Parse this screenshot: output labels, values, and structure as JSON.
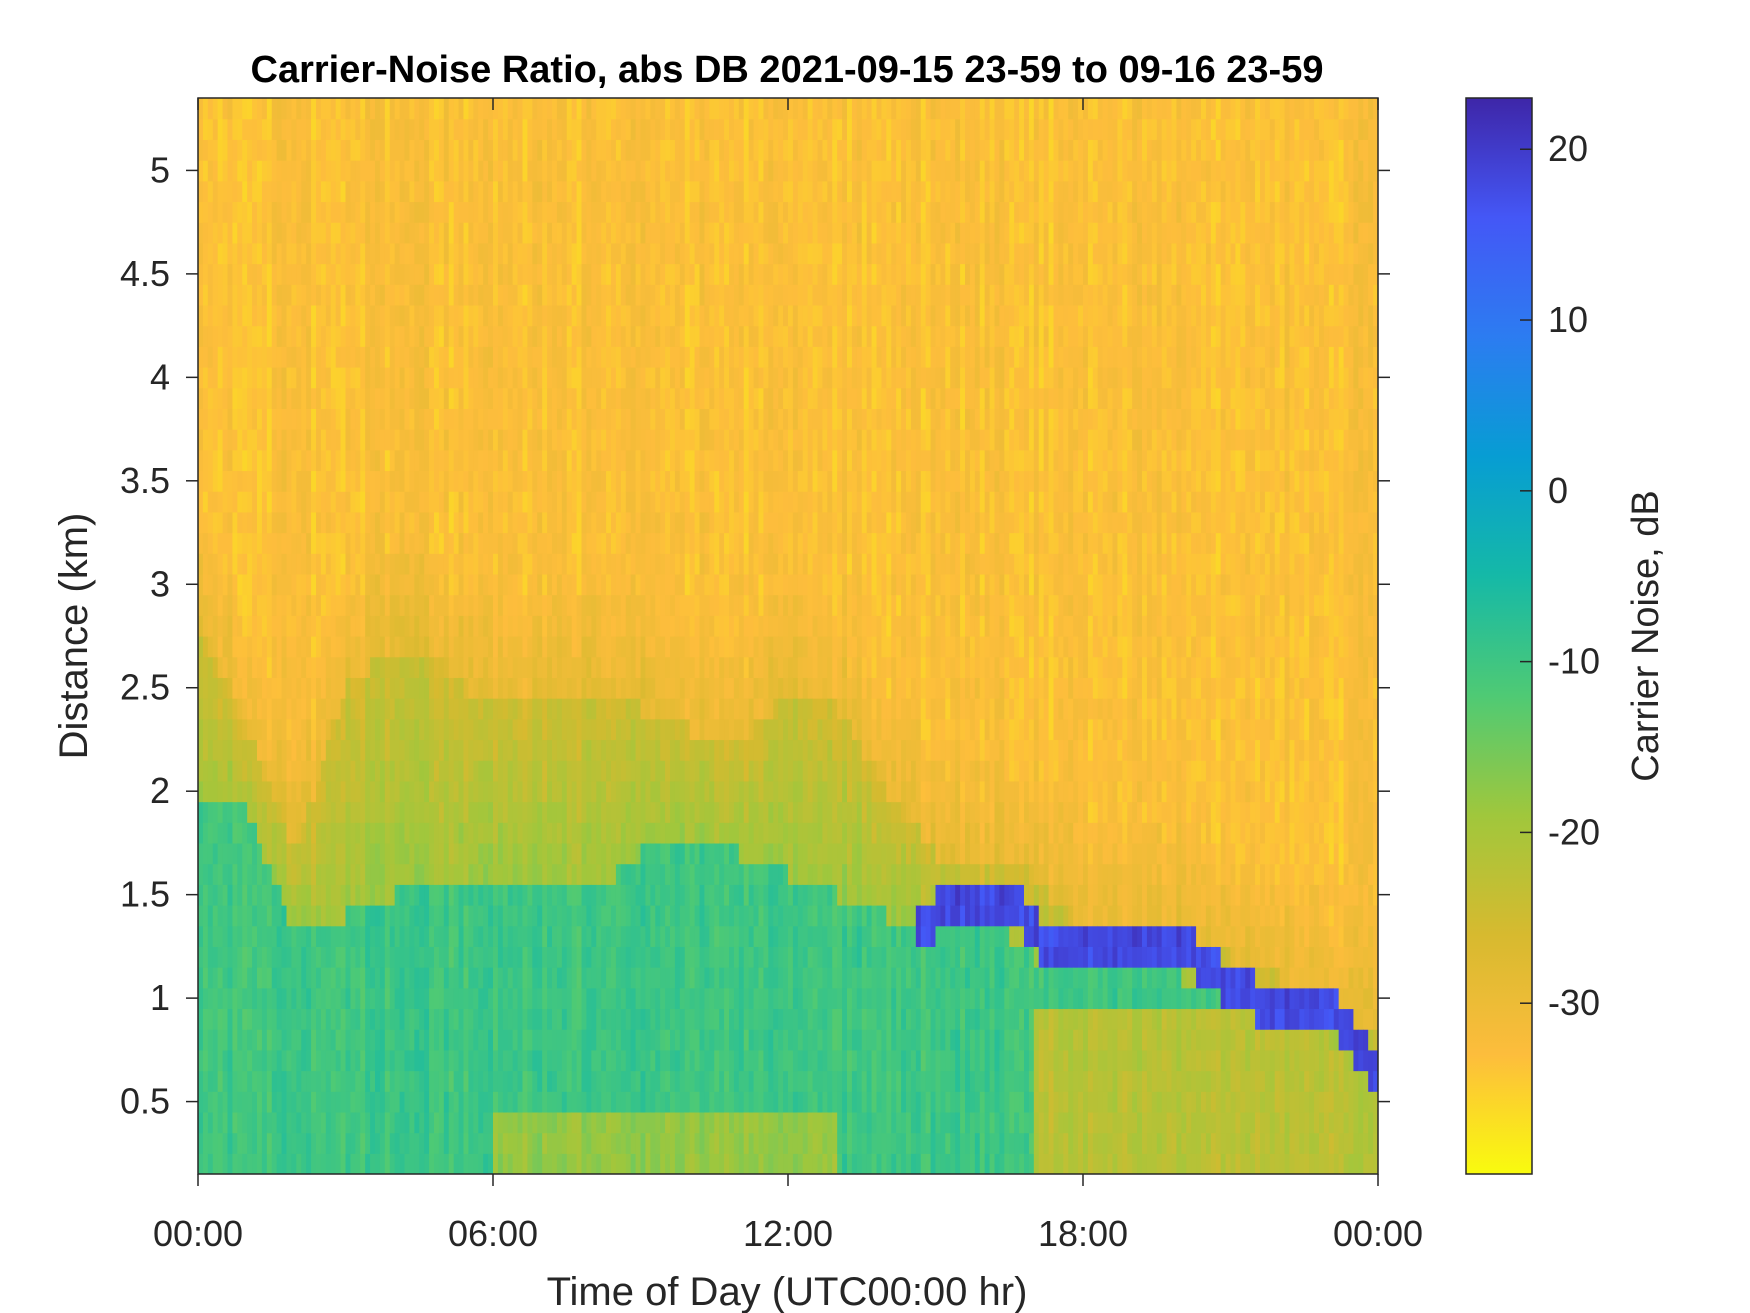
{
  "chart_data": {
    "type": "heatmap",
    "title": "Carrier-Noise Ratio, abs DB 2021-09-15 23-59 to 09-16 23-59",
    "xlabel": "Time of Day (UTC00:00 hr)",
    "ylabel": "Distance (km)",
    "colorbar_label": "Carrier Noise, dB",
    "xlim": [
      0,
      24
    ],
    "ylim": [
      0.15,
      5.35
    ],
    "clim": [
      -40,
      23
    ],
    "x_ticks": [
      0,
      6,
      12,
      18,
      24
    ],
    "x_tick_labels": [
      "00:00",
      "06:00",
      "12:00",
      "18:00",
      "00:00"
    ],
    "y_ticks": [
      0.5,
      1,
      1.5,
      2,
      2.5,
      3,
      3.5,
      4,
      4.5,
      5
    ],
    "y_tick_labels": [
      "0.5",
      "1",
      "1.5",
      "2",
      "2.5",
      "3",
      "3.5",
      "4",
      "4.5",
      "5"
    ],
    "colorbar_ticks": [
      -30,
      -20,
      -10,
      0,
      10,
      20
    ],
    "colorbar_tick_labels": [
      "-30",
      "-20",
      "-10",
      "0",
      "10",
      "20"
    ],
    "colormap": "parula",
    "colormap_stops": [
      "#f9fb0e",
      "#fdbd3c",
      "#d7ba2f",
      "#a0c73c",
      "#4fca74",
      "#15b9a7",
      "#079dd3",
      "#2c7cf1",
      "#4457f6",
      "#3e26a8"
    ],
    "grid": false,
    "boundary_height_km": {
      "hours": [
        0,
        1,
        2,
        3,
        4,
        5,
        6,
        7,
        8,
        9,
        10,
        11,
        12,
        13,
        14,
        15,
        16,
        17,
        18,
        19,
        20,
        21,
        22,
        23,
        24
      ],
      "values": [
        2.8,
        2.3,
        1.7,
        2.5,
        2.7,
        2.6,
        2.4,
        2.4,
        2.5,
        2.4,
        2.3,
        2.2,
        2.5,
        2.4,
        2.0,
        1.7,
        1.6,
        1.6,
        1.3,
        1.3,
        1.3,
        1.2,
        1.1,
        1.0,
        0.8
      ]
    },
    "aerosol_layer_top_km": {
      "hours": [
        0,
        1,
        2,
        3,
        4,
        5,
        6,
        7,
        8,
        9,
        10,
        11,
        12,
        13,
        14,
        15,
        16,
        17,
        18,
        19,
        20,
        21,
        22,
        23,
        24
      ],
      "values": [
        1.9,
        1.9,
        1.3,
        1.4,
        1.5,
        1.5,
        1.6,
        1.5,
        1.5,
        1.7,
        1.8,
        1.7,
        1.6,
        1.5,
        1.4,
        1.3,
        1.4,
        1.2,
        1.1,
        1.1,
        1.1,
        1.0,
        0.9,
        0.8,
        0.6
      ]
    },
    "strong_layer_km": {
      "hours": [
        14.6,
        15.5,
        16.5,
        17.2,
        18.0,
        19.0,
        20.0,
        21.0,
        22.0,
        23.0,
        23.5,
        24.0
      ],
      "values": [
        1.35,
        1.45,
        1.5,
        1.25,
        1.2,
        1.2,
        1.25,
        1.05,
        0.95,
        0.95,
        0.8,
        0.65
      ]
    },
    "approx_values_db": {
      "upper_clear_air": -33,
      "mid_layer": -25,
      "boundary_layer": -10,
      "strong_layer": 18,
      "near_surface_afternoon": -22
    }
  }
}
